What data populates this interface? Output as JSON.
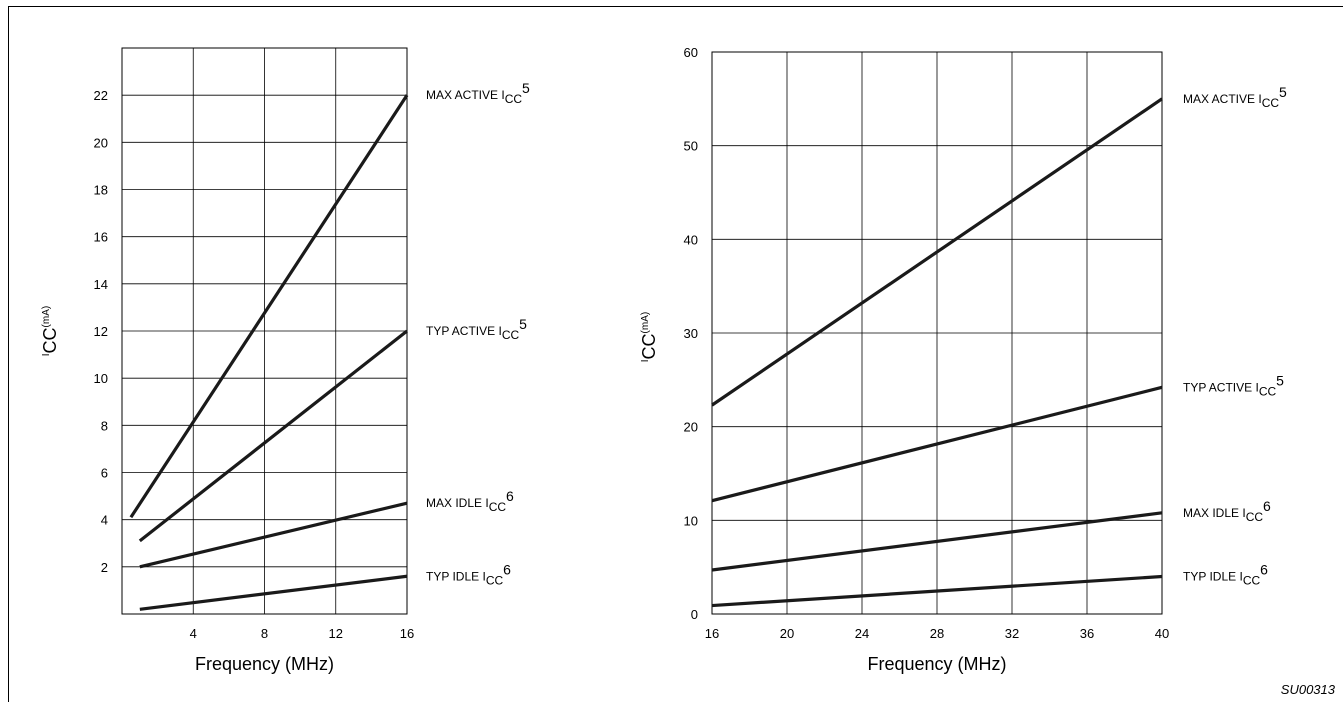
{
  "figure_code": "SU00313",
  "chart_data": [
    {
      "type": "line",
      "xlabel": "Frequency (MHz)",
      "ylabel": {
        "main": "I",
        "sub": "CC",
        "unit": "(mA)"
      },
      "xlim": [
        0,
        16
      ],
      "ylim": [
        0,
        24
      ],
      "x_ticks": [
        4,
        8,
        12,
        16
      ],
      "y_ticks": [
        2,
        4,
        6,
        8,
        10,
        12,
        14,
        16,
        18,
        20,
        22
      ],
      "x_grid": [
        0,
        4,
        8,
        12,
        16
      ],
      "y_grid": [
        2,
        4,
        6,
        8,
        10,
        12,
        14,
        16,
        18,
        20,
        22,
        24
      ],
      "grid": true,
      "series": [
        {
          "name": "MAX ACTIVE ICC5",
          "label": {
            "pre": "MAX ACTIVE I",
            "sub": "CC",
            "sup": "5"
          },
          "x": [
            0.5,
            16
          ],
          "y": [
            4.1,
            22.0
          ]
        },
        {
          "name": "TYP ACTIVE ICC5",
          "label": {
            "pre": "TYP ACTIVE I",
            "sub": "CC",
            "sup": "5"
          },
          "x": [
            1,
            16
          ],
          "y": [
            3.1,
            12.0
          ]
        },
        {
          "name": "MAX IDLE ICC6",
          "label": {
            "pre": "MAX IDLE I",
            "sub": "CC",
            "sup": "6"
          },
          "x": [
            1,
            16
          ],
          "y": [
            2.0,
            4.7
          ]
        },
        {
          "name": "TYP IDLE ICC6",
          "label": {
            "pre": "TYP IDLE I",
            "sub": "CC",
            "sup": "6"
          },
          "x": [
            1,
            16
          ],
          "y": [
            0.2,
            1.6
          ]
        }
      ]
    },
    {
      "type": "line",
      "xlabel": "Frequency (MHz)",
      "ylabel": {
        "main": "I",
        "sub": "CC",
        "unit": "(mA)"
      },
      "xlim": [
        16,
        40
      ],
      "ylim": [
        0,
        60
      ],
      "x_ticks": [
        16,
        20,
        24,
        28,
        32,
        36,
        40
      ],
      "y_ticks": [
        0,
        10,
        20,
        30,
        40,
        50,
        60
      ],
      "x_grid": [
        16,
        20,
        24,
        28,
        32,
        36,
        40
      ],
      "y_grid": [
        0,
        10,
        20,
        30,
        40,
        50,
        60
      ],
      "grid": true,
      "series": [
        {
          "name": "MAX ACTIVE ICC5",
          "label": {
            "pre": "MAX ACTIVE I",
            "sub": "CC",
            "sup": "5"
          },
          "x": [
            16,
            40
          ],
          "y": [
            22.3,
            55.0
          ]
        },
        {
          "name": "TYP ACTIVE ICC5",
          "label": {
            "pre": "TYP ACTIVE I",
            "sub": "CC",
            "sup": "5"
          },
          "x": [
            16,
            40
          ],
          "y": [
            12.1,
            24.2
          ]
        },
        {
          "name": "MAX IDLE ICC6",
          "label": {
            "pre": "MAX IDLE I",
            "sub": "CC",
            "sup": "6"
          },
          "x": [
            16,
            40
          ],
          "y": [
            4.7,
            10.8
          ]
        },
        {
          "name": "TYP IDLE ICC6",
          "label": {
            "pre": "TYP IDLE I",
            "sub": "CC",
            "sup": "6"
          },
          "x": [
            16,
            40
          ],
          "y": [
            0.9,
            4.0
          ]
        }
      ]
    }
  ]
}
